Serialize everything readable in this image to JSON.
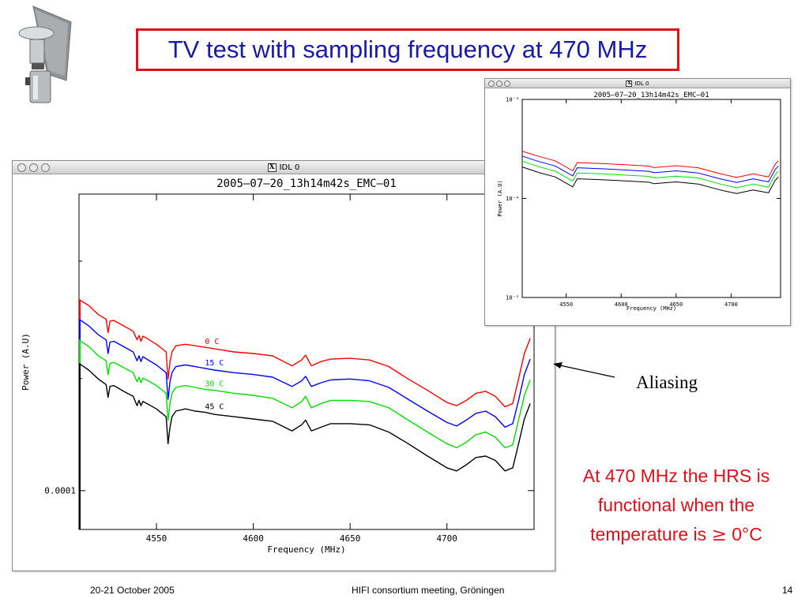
{
  "slide": {
    "title": "TV test with sampling frequency at 470 MHz",
    "annotation": "Aliasing",
    "note_line1": "At 470 MHz the HRS is",
    "note_line2": "functional when the",
    "note_line3_prefix": "temperature is ",
    "note_symbol": "≥",
    "note_line3_suffix": " 0°C",
    "footer_left": "20-21 October 2005",
    "footer_center": "HIFI consortium meeting, Gröningen",
    "footer_right": "14",
    "colors": {
      "title_blue": "#1a1aa8",
      "accent_red": "#e0101a"
    },
    "icons": [
      "satellite-logo-icon",
      "window-close-icon",
      "window-minimize-icon",
      "window-zoom-icon",
      "x11-icon",
      "arrow-icon"
    ]
  },
  "chart_data": [
    {
      "type": "line",
      "window_title": "IDL 0",
      "title": "2005—07—20_13h14m42s_EMC—01",
      "xlabel": "Frequency (MHz)",
      "ylabel": "Power (A.U)",
      "xlim": [
        4510,
        4745
      ],
      "xticks": [
        4550,
        4600,
        4650,
        4700
      ],
      "xtick_labels": [
        "4550",
        "4600",
        "4650",
        "4700"
      ],
      "yscale": "log",
      "ylim": [
        8e-05,
        0.00055
      ],
      "yticks": [
        0.0001
      ],
      "ytick_labels": [
        "0.0001"
      ],
      "series": [
        {
          "name": "0 C",
          "color": "#ff0000",
          "x": [
            4510,
            4515,
            4520,
            4524,
            4525,
            4526,
            4528,
            4533,
            4538,
            4540,
            4541,
            4542,
            4543,
            4545,
            4550,
            4555,
            4556,
            4557,
            4558,
            4560,
            4565,
            4570,
            4575,
            4580,
            4590,
            4600,
            4610,
            4620,
            4625,
            4627,
            4630,
            4635,
            4640,
            4650,
            4660,
            4670,
            4680,
            4690,
            4700,
            4705,
            4710,
            4715,
            4720,
            4725,
            4730,
            4734,
            4737,
            4740,
            4743
          ],
          "y": [
            0.0003,
            0.00029,
            0.000275,
            0.000268,
            0.000248,
            0.000265,
            0.000266,
            0.000258,
            0.00025,
            0.000238,
            0.000244,
            0.000236,
            0.000243,
            0.00024,
            0.000232,
            0.000222,
            0.00019,
            0.00021,
            0.000222,
            0.00023,
            0.000232,
            0.00023,
            0.000228,
            0.000226,
            0.000222,
            0.00022,
            0.000217,
            0.000205,
            0.000212,
            0.000218,
            0.000205,
            0.00021,
            0.000213,
            0.000214,
            0.000212,
            0.000204,
            0.00019,
            0.000178,
            0.000166,
            0.000163,
            0.000168,
            0.000175,
            0.000177,
            0.000172,
            0.000162,
            0.000165,
            0.00019,
            0.00022,
            0.00024
          ]
        },
        {
          "name": "15 C",
          "color": "#0000ff",
          "x": [
            4510,
            4515,
            4520,
            4524,
            4525,
            4526,
            4528,
            4533,
            4538,
            4540,
            4541,
            4542,
            4543,
            4545,
            4550,
            4555,
            4556,
            4557,
            4558,
            4560,
            4565,
            4570,
            4575,
            4580,
            4590,
            4600,
            4610,
            4620,
            4625,
            4627,
            4630,
            4635,
            4640,
            4650,
            4660,
            4670,
            4680,
            4690,
            4700,
            4705,
            4710,
            4715,
            4720,
            4725,
            4730,
            4734,
            4737,
            4740,
            4743
          ],
          "y": [
            0.000268,
            0.000258,
            0.000245,
            0.000238,
            0.00022,
            0.000235,
            0.000236,
            0.000229,
            0.000222,
            0.000211,
            0.000217,
            0.00021,
            0.000216,
            0.000213,
            0.000206,
            0.000197,
            0.000169,
            0.000187,
            0.000197,
            0.000204,
            0.000206,
            0.000204,
            0.000202,
            0.0002,
            0.000197,
            0.000195,
            0.000192,
            0.000182,
            0.000188,
            0.000193,
            0.000182,
            0.000186,
            0.000189,
            0.00019,
            0.000188,
            0.000181,
            0.000169,
            0.000158,
            0.000148,
            0.000145,
            0.00015,
            0.000156,
            0.000158,
            0.000153,
            0.000144,
            0.000147,
            0.000168,
            0.000195,
            0.000213
          ]
        },
        {
          "name": "30 C",
          "color": "#00e000",
          "x": [
            4510,
            4515,
            4520,
            4524,
            4525,
            4526,
            4528,
            4533,
            4538,
            4540,
            4541,
            4542,
            4543,
            4545,
            4550,
            4555,
            4556,
            4557,
            4558,
            4560,
            4565,
            4570,
            4575,
            4580,
            4590,
            4600,
            4610,
            4620,
            4625,
            4627,
            4630,
            4635,
            4640,
            4650,
            4660,
            4670,
            4680,
            4690,
            4700,
            4705,
            4710,
            4715,
            4720,
            4725,
            4730,
            4734,
            4737,
            4740,
            4743
          ],
          "y": [
            0.000238,
            0.000229,
            0.000217,
            0.000211,
            0.000195,
            0.000208,
            0.000209,
            0.000203,
            0.000197,
            0.000187,
            0.000192,
            0.000186,
            0.000191,
            0.000189,
            0.000183,
            0.000175,
            0.00015,
            0.000165,
            0.000175,
            0.000181,
            0.000183,
            0.000181,
            0.000179,
            0.000178,
            0.000175,
            0.000173,
            0.00017,
            0.000161,
            0.000167,
            0.000172,
            0.000161,
            0.000165,
            0.000168,
            0.000168,
            0.000167,
            0.000161,
            0.00015,
            0.00014,
            0.000131,
            0.000128,
            0.000132,
            0.000138,
            0.00014,
            0.000136,
            0.000128,
            0.00013,
            0.00015,
            0.000173,
            0.000189
          ]
        },
        {
          "name": "45 C",
          "color": "#000000",
          "x": [
            4510,
            4515,
            4520,
            4524,
            4525,
            4526,
            4528,
            4533,
            4538,
            4540,
            4541,
            4542,
            4543,
            4545,
            4550,
            4555,
            4556,
            4557,
            4558,
            4560,
            4565,
            4570,
            4575,
            4580,
            4590,
            4600,
            4610,
            4620,
            4625,
            4627,
            4630,
            4635,
            4640,
            4650,
            4660,
            4670,
            4680,
            4690,
            4700,
            4705,
            4710,
            4715,
            4720,
            4725,
            4730,
            4734,
            4737,
            4740,
            4743
          ],
          "y": [
            0.000208,
            0.0002,
            0.00019,
            0.000184,
            0.000171,
            0.000182,
            0.000183,
            0.000177,
            0.000172,
            0.000163,
            0.000168,
            0.000163,
            0.000167,
            0.000165,
            0.00016,
            0.000153,
            0.000131,
            0.000144,
            0.000153,
            0.000158,
            0.00016,
            0.000158,
            0.000157,
            0.000155,
            0.000153,
            0.000151,
            0.000149,
            0.000141,
            0.000146,
            0.00015,
            0.000141,
            0.000144,
            0.000147,
            0.000147,
            0.000146,
            0.00014,
            0.000131,
            0.000122,
            0.000114,
            0.000112,
            0.000116,
            0.000121,
            0.000122,
            0.000119,
            0.000112,
            0.000114,
            0.000131,
            0.000151,
            0.000165
          ]
        }
      ]
    },
    {
      "type": "line",
      "window_title": "IDL 0",
      "title": "2005—07—20_13h14m42s_EMC—01",
      "xlabel": "Frequency (MHz)",
      "ylabel": "Power (A.U)",
      "xlim": [
        4510,
        4745
      ],
      "xticks": [
        4550,
        4600,
        4650,
        4700
      ],
      "xtick_labels": [
        "4550",
        "4600",
        "4650",
        "4700"
      ],
      "yscale": "log",
      "ylim": [
        1e-05,
        0.001
      ],
      "yticks": [
        1e-05,
        0.0001,
        0.001
      ],
      "ytick_labels": [
        "10⁻⁵",
        "10⁻⁴",
        "10⁻³"
      ],
      "series": [
        {
          "color": "#ff0000",
          "x": [
            4510,
            4525,
            4540,
            4556,
            4560,
            4580,
            4600,
            4625,
            4630,
            4650,
            4670,
            4690,
            4705,
            4720,
            4734,
            4740,
            4743
          ],
          "y": [
            0.0003,
            0.000266,
            0.00024,
            0.00019,
            0.00023,
            0.000226,
            0.00022,
            0.000212,
            0.000205,
            0.000214,
            0.000204,
            0.000178,
            0.000163,
            0.000177,
            0.000165,
            0.00022,
            0.00024
          ]
        },
        {
          "color": "#0000ff",
          "x": [
            4510,
            4525,
            4540,
            4556,
            4560,
            4580,
            4600,
            4625,
            4630,
            4650,
            4670,
            4690,
            4705,
            4720,
            4734,
            4740,
            4743
          ],
          "y": [
            0.000268,
            0.000236,
            0.000213,
            0.000169,
            0.000204,
            0.0002,
            0.000195,
            0.000188,
            0.000182,
            0.00019,
            0.000181,
            0.000158,
            0.000145,
            0.000158,
            0.000147,
            0.000195,
            0.000213
          ]
        },
        {
          "color": "#00e000",
          "x": [
            4510,
            4525,
            4540,
            4556,
            4560,
            4580,
            4600,
            4625,
            4630,
            4650,
            4670,
            4690,
            4705,
            4720,
            4734,
            4740,
            4743
          ],
          "y": [
            0.000238,
            0.000209,
            0.000189,
            0.00015,
            0.000181,
            0.000178,
            0.000173,
            0.000167,
            0.000161,
            0.000168,
            0.000161,
            0.00014,
            0.000128,
            0.00014,
            0.00013,
            0.000173,
            0.000189
          ]
        },
        {
          "color": "#000000",
          "x": [
            4510,
            4525,
            4540,
            4556,
            4560,
            4580,
            4600,
            4625,
            4630,
            4650,
            4670,
            4690,
            4705,
            4720,
            4734,
            4740,
            4743
          ],
          "y": [
            0.000208,
            0.000183,
            0.000165,
            0.000131,
            0.000158,
            0.000155,
            0.000151,
            0.000146,
            0.000141,
            0.000147,
            0.00014,
            0.000122,
            0.000112,
            0.000122,
            0.000114,
            0.000151,
            0.000165
          ]
        }
      ]
    }
  ]
}
